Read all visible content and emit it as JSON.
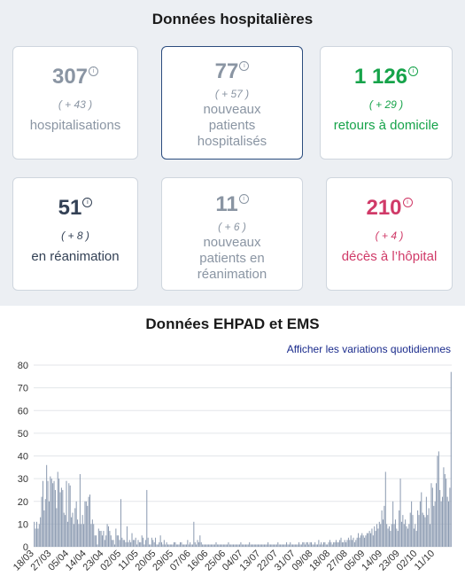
{
  "hospital_section": {
    "title": "Données hospitalières",
    "cards": [
      {
        "value": "307",
        "delta": "( + 43 )",
        "label": "hospitalisations"
      },
      {
        "value": "77",
        "delta": "( + 57 )",
        "label": "nouveaux patients hospitalisés"
      },
      {
        "value": "1 126",
        "delta": "( + 29 )",
        "label": "retours à domicile"
      },
      {
        "value": "51",
        "delta": "( + 8 )",
        "label": "en réanimation"
      },
      {
        "value": "11",
        "delta": "( + 6 )",
        "label": "nouveaux patients en réanimation"
      },
      {
        "value": "210",
        "delta": "( + 4 )",
        "label": "décès à l’hôpital"
      }
    ],
    "info_icon": "i"
  },
  "ehpad_section": {
    "title": "Données EHPAD et EMS",
    "toggle_label": "Afficher les variations quotidiennes"
  },
  "colors": {
    "bar": "#8a99b0",
    "grey": "#8a95a3",
    "green": "#16a34a",
    "navy": "#334155",
    "pink": "#d03a68"
  },
  "chart_data": {
    "type": "bar",
    "ylim": [
      0,
      80
    ],
    "yticks": [
      0,
      10,
      20,
      30,
      40,
      50,
      60,
      70,
      80
    ],
    "grid": true,
    "x_tick_labels": [
      "18/03",
      "27/03",
      "05/04",
      "14/04",
      "23/04",
      "02/05",
      "11/05",
      "20/05",
      "29/05",
      "07/06",
      "16/06",
      "25/06",
      "04/07",
      "13/07",
      "22/07",
      "31/07",
      "09/08",
      "18/08",
      "27/08",
      "05/09",
      "14/09",
      "23/09",
      "02/10",
      "11/10"
    ],
    "values": [
      11,
      8,
      11,
      8,
      10,
      13,
      22,
      29,
      16,
      21,
      36,
      29,
      20,
      31,
      30,
      28,
      29,
      25,
      17,
      33,
      30,
      24,
      26,
      25,
      15,
      14,
      29,
      11,
      28,
      27,
      13,
      15,
      10,
      17,
      20,
      12,
      10,
      32,
      10,
      14,
      10,
      20,
      20,
      18,
      22,
      23,
      10,
      12,
      10,
      5,
      5,
      1,
      8,
      7,
      7,
      5,
      7,
      3,
      5,
      10,
      9,
      7,
      5,
      3,
      3,
      1,
      8,
      5,
      5,
      3,
      21,
      4,
      3,
      3,
      2,
      9,
      2,
      3,
      2,
      6,
      3,
      3,
      4,
      1,
      3,
      2,
      2,
      5,
      4,
      1,
      3,
      25,
      4,
      1,
      1,
      4,
      3,
      2,
      4,
      1,
      1,
      2,
      5,
      2,
      1,
      3,
      1,
      2,
      1,
      1,
      1,
      1,
      1,
      2,
      2,
      1,
      1,
      1,
      2,
      2,
      1,
      1,
      1,
      1,
      3,
      1,
      2,
      1,
      1,
      11,
      2,
      1,
      3,
      2,
      5,
      2,
      1,
      1,
      1,
      1,
      1,
      1,
      1,
      1,
      1,
      1,
      1,
      2,
      1,
      1,
      1,
      1,
      1,
      1,
      1,
      1,
      1,
      2,
      1,
      1,
      1,
      1,
      1,
      1,
      1,
      1,
      1,
      2,
      1,
      1,
      1,
      1,
      1,
      1,
      2,
      1,
      1,
      1,
      1,
      1,
      1,
      1,
      1,
      1,
      1,
      1,
      1,
      1,
      1,
      2,
      1,
      1,
      1,
      1,
      1,
      1,
      1,
      2,
      1,
      1,
      1,
      1,
      1,
      1,
      2,
      1,
      1,
      2,
      1,
      1,
      1,
      1,
      1,
      1,
      2,
      1,
      1,
      2,
      2,
      1,
      2,
      2,
      1,
      2,
      2,
      1,
      1,
      2,
      1,
      1,
      3,
      1,
      2,
      1,
      2,
      2,
      1,
      1,
      2,
      3,
      2,
      1,
      2,
      2,
      3,
      2,
      2,
      3,
      4,
      2,
      2,
      3,
      2,
      3,
      4,
      3,
      5,
      3,
      4,
      2,
      3,
      4,
      6,
      4,
      5,
      6,
      5,
      4,
      5,
      6,
      6,
      7,
      6,
      8,
      5,
      9,
      7,
      10,
      8,
      11,
      10,
      16,
      12,
      18,
      33,
      10,
      8,
      9,
      7,
      10,
      20,
      10,
      12,
      8,
      7,
      16,
      30,
      11,
      14,
      10,
      12,
      9,
      8,
      10,
      15,
      20,
      14,
      8,
      10,
      7,
      16,
      14,
      20,
      24,
      15,
      14,
      13,
      22,
      14,
      17,
      10,
      28,
      26,
      18,
      20,
      28,
      40,
      42,
      25,
      20,
      22,
      35,
      32,
      30,
      22,
      20,
      26,
      77
    ]
  }
}
